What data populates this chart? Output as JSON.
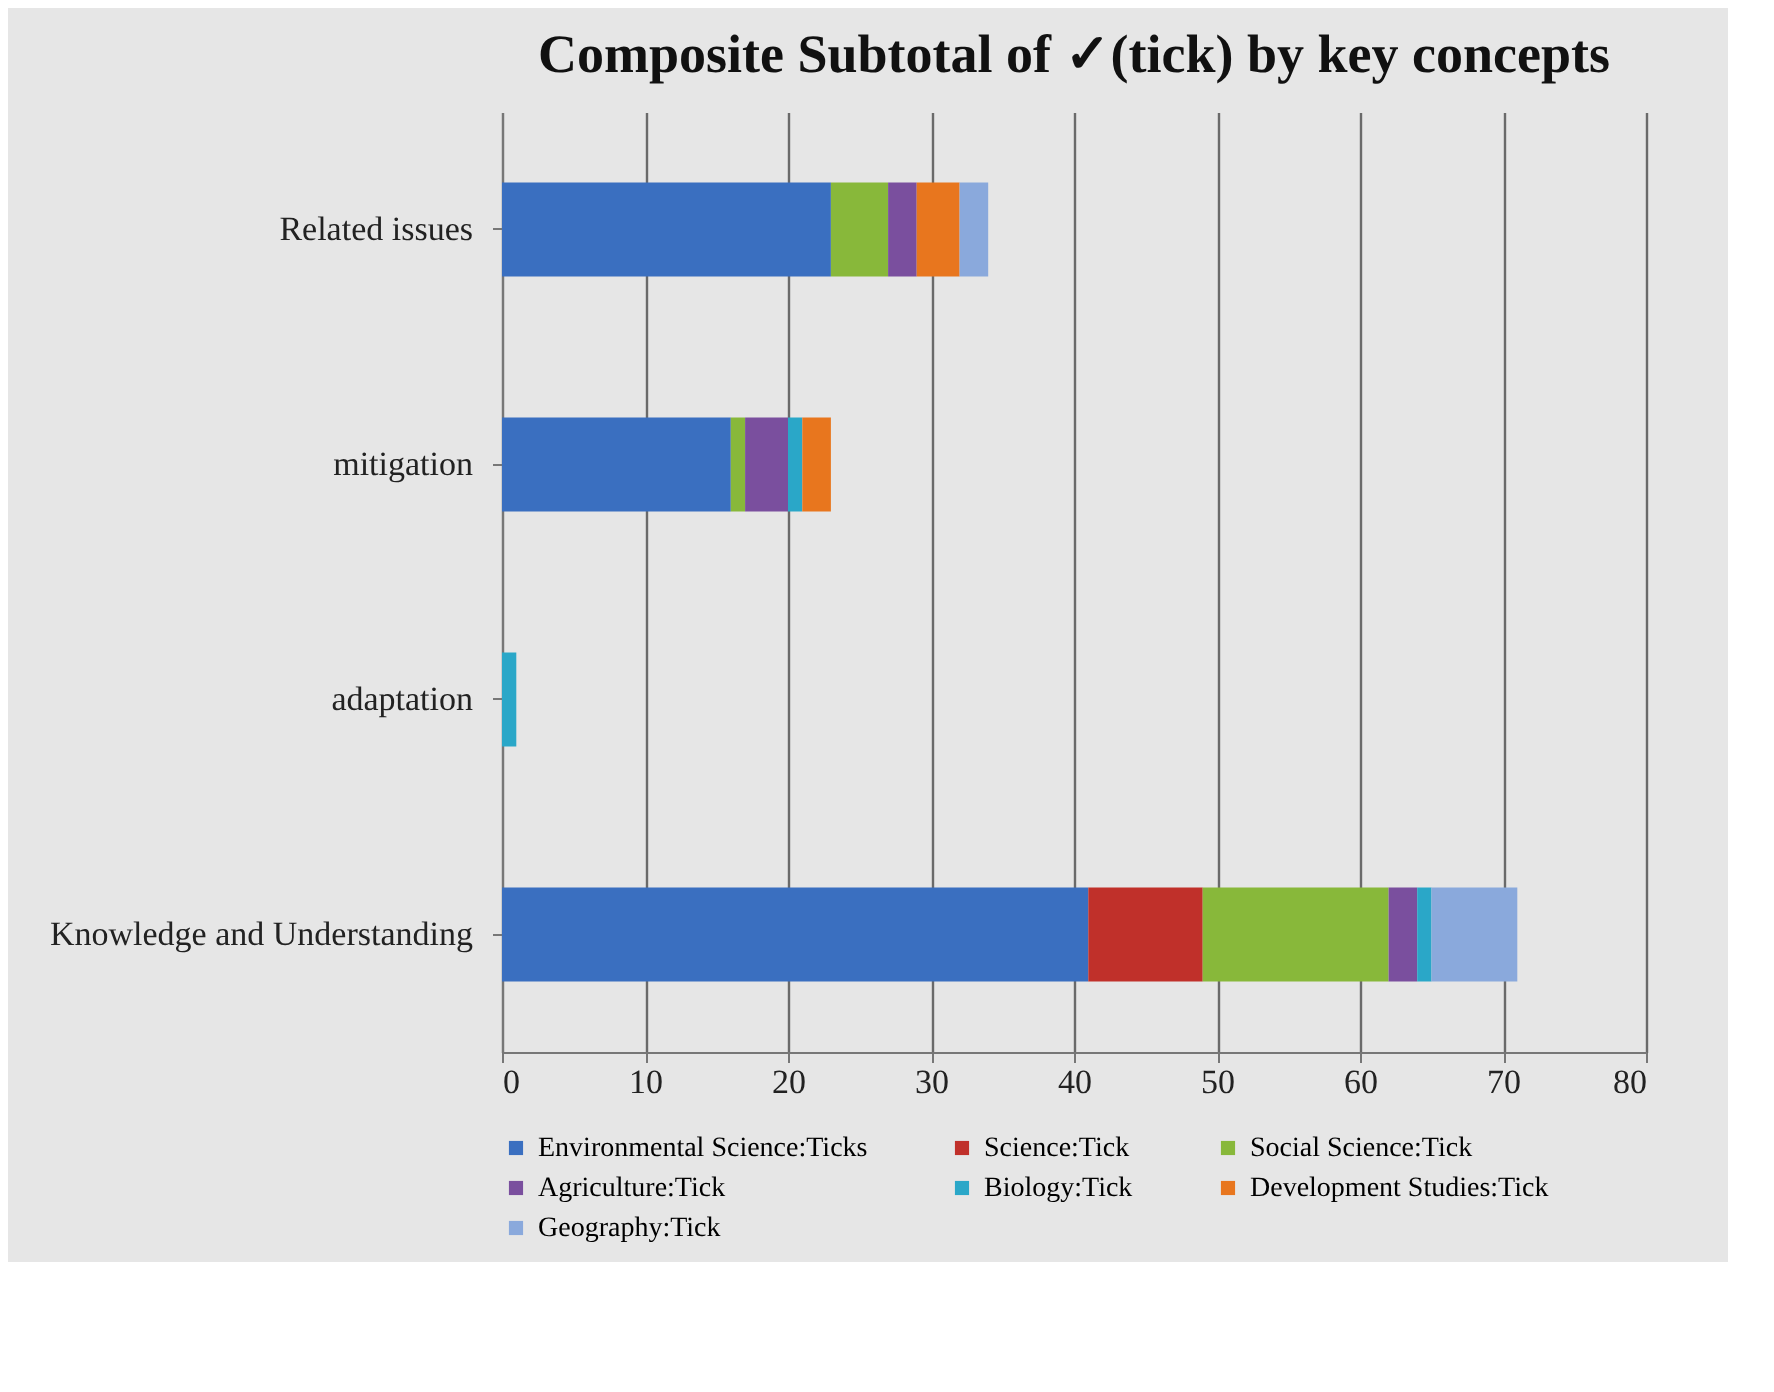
{
  "chart_data": {
    "type": "bar",
    "orientation": "horizontal",
    "stacked": true,
    "title": "Composite Subtotal of ✓(tick) by key concepts",
    "categories": [
      "Related issues",
      "mitigation",
      "adaptation",
      "Knowledge and Understanding"
    ],
    "series": [
      {
        "name": "Environmental Science:Ticks",
        "color": "#3a6fc0",
        "values": [
          23,
          16,
          0,
          41
        ]
      },
      {
        "name": "Science:Tick",
        "color": "#c0302a",
        "values": [
          0,
          0,
          0,
          8
        ]
      },
      {
        "name": "Social Science:Tick",
        "color": "#88b83a",
        "values": [
          4,
          1,
          0,
          13
        ]
      },
      {
        "name": "Agriculture:Tick",
        "color": "#7a4f9e",
        "values": [
          2,
          3,
          0,
          2
        ]
      },
      {
        "name": "Biology:Tick",
        "color": "#2aa7c8",
        "values": [
          0,
          1,
          1,
          1
        ]
      },
      {
        "name": "Development Studies:Tick",
        "color": "#e8761e",
        "values": [
          3,
          2,
          0,
          0
        ]
      },
      {
        "name": "Geography:Tick",
        "color": "#8aa9dc",
        "values": [
          2,
          0,
          0,
          6
        ]
      }
    ],
    "xlim": [
      0,
      80
    ],
    "xticks": [
      0,
      10,
      20,
      30,
      40,
      50,
      60,
      70,
      80
    ],
    "grid": "x",
    "legend": "bottom"
  }
}
